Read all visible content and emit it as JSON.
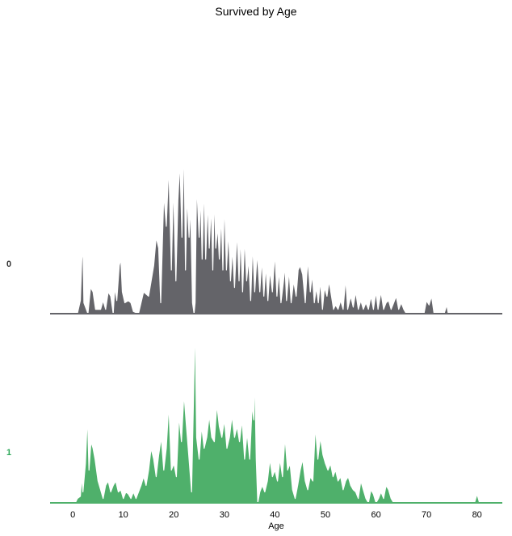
{
  "chart_data": {
    "type": "area",
    "title": "Survived by Age",
    "xlabel": "Age",
    "ylabel": "",
    "xlim": [
      -4.5,
      85
    ],
    "xticks": [
      "0",
      "10",
      "20",
      "30",
      "40",
      "50",
      "60",
      "70",
      "80"
    ],
    "grid": false,
    "series": [
      {
        "name": "0",
        "color": "#646469",
        "label_color": "#333333",
        "points": [
          [
            0.9,
            0
          ],
          [
            1.5,
            0.06
          ],
          [
            1.8,
            0.25
          ],
          [
            2.0,
            0.3
          ],
          [
            2.2,
            0.05
          ],
          [
            3.0,
            0
          ],
          [
            3.5,
            0.12
          ],
          [
            4.0,
            0.1
          ],
          [
            4.5,
            0.02
          ],
          [
            5.5,
            0.02
          ],
          [
            6.0,
            0.06
          ],
          [
            6.5,
            0.02
          ],
          [
            7.0,
            0.1
          ],
          [
            7.5,
            0.08
          ],
          [
            8.0,
            0.0
          ],
          [
            8.3,
            0.12
          ],
          [
            8.7,
            0.06
          ],
          [
            9.2,
            0.22
          ],
          [
            9.5,
            0.25
          ],
          [
            9.8,
            0.1
          ],
          [
            10.3,
            0.05
          ],
          [
            11.0,
            0.06
          ],
          [
            11.5,
            0.05
          ],
          [
            12.0,
            0.01
          ],
          [
            13.0,
            0.0
          ],
          [
            14.0,
            0.1
          ],
          [
            15.0,
            0.08
          ],
          [
            16.0,
            0.22
          ],
          [
            16.5,
            0.35
          ],
          [
            17.0,
            0.3
          ],
          [
            17.4,
            0.05
          ],
          [
            18.0,
            0.55
          ],
          [
            18.5,
            0.4
          ],
          [
            19.0,
            0.68
          ],
          [
            19.5,
            0.2
          ],
          [
            19.9,
            0.6
          ],
          [
            20.4,
            0.15
          ],
          [
            20.8,
            0.52
          ],
          [
            21.2,
            0.7
          ],
          [
            21.6,
            0.35
          ],
          [
            22.0,
            0.8
          ],
          [
            22.3,
            0.2
          ],
          [
            22.6,
            0.55
          ],
          [
            23.0,
            0.35
          ],
          [
            23.3,
            0.5
          ],
          [
            23.7,
            0.05
          ],
          [
            24.0,
            0.0
          ],
          [
            24.2,
            0.05
          ],
          [
            24.5,
            0.6
          ],
          [
            25.0,
            0.35
          ],
          [
            25.3,
            0.55
          ],
          [
            25.6,
            0.25
          ],
          [
            26.0,
            0.6
          ],
          [
            26.3,
            0.25
          ],
          [
            26.7,
            0.52
          ],
          [
            27.0,
            0.3
          ],
          [
            27.4,
            0.5
          ],
          [
            27.7,
            0.2
          ],
          [
            28.0,
            0.55
          ],
          [
            28.3,
            0.3
          ],
          [
            28.7,
            0.4
          ],
          [
            29.0,
            0.25
          ],
          [
            29.4,
            0.45
          ],
          [
            29.7,
            0.2
          ],
          [
            30.0,
            0.52
          ],
          [
            30.4,
            0.2
          ],
          [
            30.8,
            0.38
          ],
          [
            31.2,
            0.15
          ],
          [
            31.6,
            0.3
          ],
          [
            32.0,
            0.12
          ],
          [
            32.5,
            0.38
          ],
          [
            32.9,
            0.15
          ],
          [
            33.2,
            0.36
          ],
          [
            33.6,
            0.1
          ],
          [
            34.0,
            0.35
          ],
          [
            34.4,
            0.15
          ],
          [
            34.8,
            0.25
          ],
          [
            35.2,
            0.06
          ],
          [
            35.6,
            0.32
          ],
          [
            36.0,
            0.1
          ],
          [
            36.5,
            0.28
          ],
          [
            37.0,
            0.1
          ],
          [
            37.4,
            0.25
          ],
          [
            37.8,
            0.08
          ],
          [
            38.2,
            0.22
          ],
          [
            38.6,
            0.06
          ],
          [
            39.0,
            0.2
          ],
          [
            39.5,
            0.1
          ],
          [
            40.0,
            0.28
          ],
          [
            40.4,
            0.08
          ],
          [
            40.8,
            0.2
          ],
          [
            41.2,
            0.05
          ],
          [
            41.7,
            0.15
          ],
          [
            42.0,
            0.22
          ],
          [
            42.3,
            0.06
          ],
          [
            42.8,
            0.2
          ],
          [
            43.2,
            0.05
          ],
          [
            43.7,
            0.15
          ],
          [
            44.2,
            0.08
          ],
          [
            44.6,
            0.2
          ],
          [
            45.0,
            0.22
          ],
          [
            45.5,
            0.18
          ],
          [
            46.0,
            0.05
          ],
          [
            46.5,
            0.25
          ],
          [
            47.0,
            0.1
          ],
          [
            47.4,
            0.18
          ],
          [
            47.8,
            0.05
          ],
          [
            48.2,
            0.12
          ],
          [
            48.6,
            0.05
          ],
          [
            49.0,
            0.15
          ],
          [
            49.4,
            0.02
          ],
          [
            49.8,
            0.12
          ],
          [
            50.3,
            0.08
          ],
          [
            50.7,
            0.15
          ],
          [
            51.2,
            0.08
          ],
          [
            51.6,
            0.02
          ],
          [
            52.0,
            0.04
          ],
          [
            52.5,
            0.02
          ],
          [
            53.0,
            0.06
          ],
          [
            53.5,
            0.02
          ],
          [
            54.0,
            0.16
          ],
          [
            54.4,
            0.02
          ],
          [
            55.0,
            0.08
          ],
          [
            55.5,
            0.03
          ],
          [
            56.0,
            0.1
          ],
          [
            56.5,
            0.02
          ],
          [
            57.0,
            0.06
          ],
          [
            57.5,
            0.02
          ],
          [
            58.0,
            0.05
          ],
          [
            58.5,
            0.02
          ],
          [
            59.0,
            0.08
          ],
          [
            59.5,
            0.02
          ],
          [
            60.0,
            0.1
          ],
          [
            60.4,
            0.02
          ],
          [
            61.0,
            0.1
          ],
          [
            61.5,
            0.02
          ],
          [
            62.0,
            0.05
          ],
          [
            62.5,
            0.06
          ],
          [
            63.0,
            0.02
          ],
          [
            63.5,
            0.05
          ],
          [
            64.0,
            0.08
          ],
          [
            64.5,
            0.02
          ],
          [
            65.0,
            0.05
          ],
          [
            65.5,
            0.02
          ],
          [
            66.0,
            0.0
          ],
          [
            69.5,
            0.0
          ],
          [
            70.0,
            0.06
          ],
          [
            70.5,
            0.04
          ],
          [
            71.0,
            0.08
          ],
          [
            71.5,
            0.0
          ],
          [
            73.5,
            0.0
          ],
          [
            74.0,
            0.04
          ],
          [
            74.3,
            0.0
          ]
        ]
      },
      {
        "name": "1",
        "color": "#4fb06b",
        "label_color": "#2ea85a",
        "points": [
          [
            0.5,
            0
          ],
          [
            0.9,
            0.02
          ],
          [
            1.5,
            0.03
          ],
          [
            1.8,
            0.12
          ],
          [
            2.0,
            0.05
          ],
          [
            2.5,
            0.18
          ],
          [
            2.9,
            0.4
          ],
          [
            3.2,
            0.15
          ],
          [
            3.6,
            0.28
          ],
          [
            4.0,
            0.25
          ],
          [
            4.4,
            0.2
          ],
          [
            5.0,
            0.1
          ],
          [
            5.5,
            0.06
          ],
          [
            6.0,
            0.02
          ],
          [
            6.5,
            0.08
          ],
          [
            7.0,
            0.1
          ],
          [
            7.5,
            0.05
          ],
          [
            8.0,
            0.08
          ],
          [
            8.5,
            0.1
          ],
          [
            9.0,
            0.05
          ],
          [
            9.5,
            0.06
          ],
          [
            10.0,
            0.02
          ],
          [
            10.5,
            0.05
          ],
          [
            11.0,
            0.04
          ],
          [
            11.5,
            0.02
          ],
          [
            12.0,
            0.05
          ],
          [
            12.5,
            0.02
          ],
          [
            13.0,
            0.05
          ],
          [
            13.5,
            0.08
          ],
          [
            14.0,
            0.12
          ],
          [
            14.5,
            0.08
          ],
          [
            15.0,
            0.15
          ],
          [
            15.5,
            0.25
          ],
          [
            16.0,
            0.2
          ],
          [
            16.5,
            0.12
          ],
          [
            17.0,
            0.22
          ],
          [
            17.5,
            0.3
          ],
          [
            18.0,
            0.15
          ],
          [
            18.5,
            0.25
          ],
          [
            19.0,
            0.45
          ],
          [
            19.5,
            0.15
          ],
          [
            20.0,
            0.18
          ],
          [
            20.5,
            0.12
          ],
          [
            21.0,
            0.4
          ],
          [
            21.5,
            0.28
          ],
          [
            22.0,
            0.5
          ],
          [
            22.5,
            0.35
          ],
          [
            23.0,
            0.2
          ],
          [
            23.5,
            0.05
          ],
          [
            24.0,
            0.6
          ],
          [
            24.2,
            0.85
          ],
          [
            24.5,
            0.3
          ],
          [
            25.0,
            0.2
          ],
          [
            25.5,
            0.35
          ],
          [
            26.0,
            0.25
          ],
          [
            26.5,
            0.3
          ],
          [
            27.0,
            0.4
          ],
          [
            27.5,
            0.3
          ],
          [
            28.0,
            0.28
          ],
          [
            28.5,
            0.45
          ],
          [
            29.0,
            0.35
          ],
          [
            29.5,
            0.3
          ],
          [
            30.0,
            0.38
          ],
          [
            30.5,
            0.25
          ],
          [
            31.0,
            0.3
          ],
          [
            31.5,
            0.4
          ],
          [
            32.0,
            0.3
          ],
          [
            32.5,
            0.35
          ],
          [
            33.0,
            0.28
          ],
          [
            33.5,
            0.38
          ],
          [
            34.0,
            0.2
          ],
          [
            34.5,
            0.32
          ],
          [
            35.0,
            0.2
          ],
          [
            35.5,
            0.45
          ],
          [
            35.8,
            0.38
          ],
          [
            36.0,
            0.6
          ],
          [
            36.3,
            0.2
          ],
          [
            36.6,
            0.0
          ],
          [
            37.0,
            0.05
          ],
          [
            37.5,
            0.08
          ],
          [
            38.0,
            0.05
          ],
          [
            38.5,
            0.1
          ],
          [
            39.0,
            0.2
          ],
          [
            39.5,
            0.12
          ],
          [
            40.0,
            0.15
          ],
          [
            40.5,
            0.1
          ],
          [
            41.0,
            0.2
          ],
          [
            41.5,
            0.12
          ],
          [
            42.0,
            0.3
          ],
          [
            42.5,
            0.15
          ],
          [
            43.0,
            0.18
          ],
          [
            43.5,
            0.06
          ],
          [
            44.0,
            0.02
          ],
          [
            44.5,
            0.08
          ],
          [
            45.0,
            0.15
          ],
          [
            45.5,
            0.2
          ],
          [
            46.0,
            0.1
          ],
          [
            46.5,
            0.06
          ],
          [
            47.0,
            0.12
          ],
          [
            47.5,
            0.1
          ],
          [
            48.0,
            0.35
          ],
          [
            48.5,
            0.2
          ],
          [
            49.0,
            0.3
          ],
          [
            49.5,
            0.22
          ],
          [
            50.0,
            0.18
          ],
          [
            50.5,
            0.15
          ],
          [
            51.0,
            0.18
          ],
          [
            51.5,
            0.12
          ],
          [
            52.0,
            0.15
          ],
          [
            52.5,
            0.1
          ],
          [
            53.0,
            0.12
          ],
          [
            53.5,
            0.06
          ],
          [
            54.0,
            0.1
          ],
          [
            54.5,
            0.12
          ],
          [
            55.0,
            0.08
          ],
          [
            55.5,
            0.06
          ],
          [
            56.0,
            0.05
          ],
          [
            56.5,
            0.02
          ],
          [
            57.0,
            0.1
          ],
          [
            57.5,
            0.06
          ],
          [
            58.0,
            0.02
          ],
          [
            58.5,
            0.0
          ],
          [
            59.0,
            0.06
          ],
          [
            59.5,
            0.04
          ],
          [
            60.0,
            0.0
          ],
          [
            60.5,
            0.02
          ],
          [
            61.0,
            0.05
          ],
          [
            61.5,
            0.02
          ],
          [
            62.0,
            0.08
          ],
          [
            62.5,
            0.06
          ],
          [
            63.0,
            0.02
          ],
          [
            63.5,
            0.0
          ],
          [
            79.5,
            0.0
          ],
          [
            80.0,
            0.04
          ],
          [
            80.5,
            0.0
          ]
        ]
      }
    ]
  }
}
